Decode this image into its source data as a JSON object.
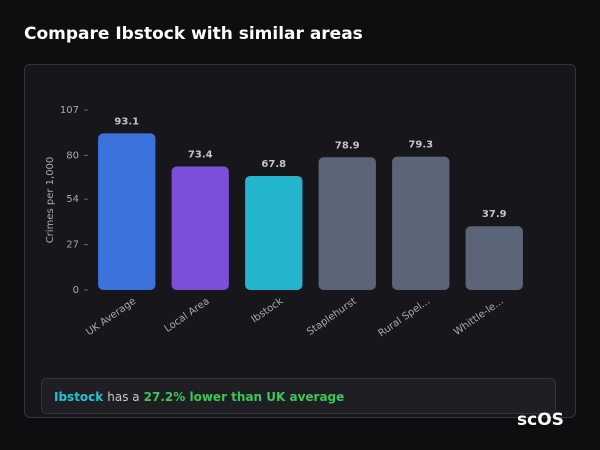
{
  "title": "Compare Ibstock with similar areas",
  "chart_data": {
    "type": "bar",
    "y_label": "Crimes per 1,000",
    "categories": [
      "UK Average",
      "Local Area",
      "Ibstock",
      "Staplehurst",
      "Rural Spel...",
      "Whittle-le..."
    ],
    "values": [
      93.1,
      73.4,
      67.8,
      78.9,
      79.3,
      37.9
    ],
    "colors": [
      "#3b72db",
      "#7b4fd8",
      "#22b5cc",
      "#5b6577",
      "#5b6577",
      "#5b6577"
    ],
    "ylim": [
      0,
      107
    ],
    "yticks": [
      0,
      27,
      54,
      80,
      107
    ],
    "value_labels_shown": true
  },
  "summary": {
    "area": "Ibstock",
    "text": "has a",
    "highlight": "27.2% lower than UK average"
  },
  "logo": "scOS"
}
